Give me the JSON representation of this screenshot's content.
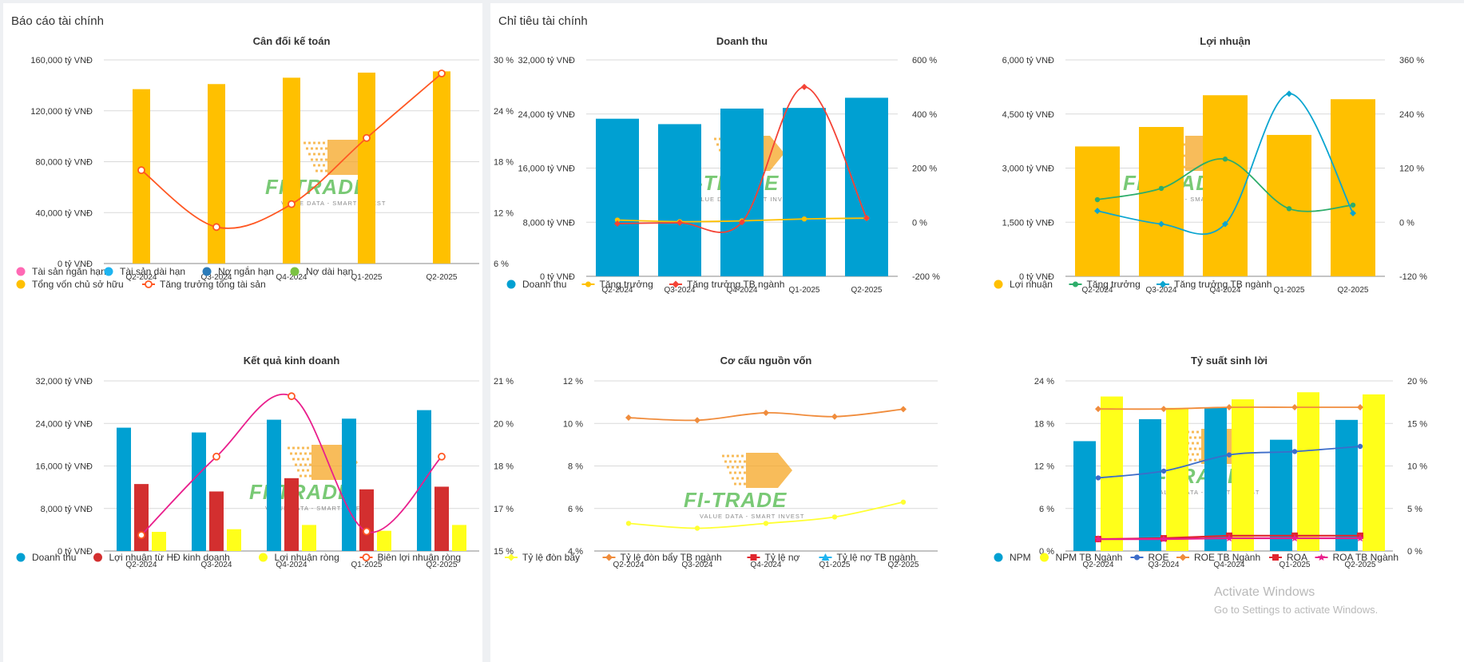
{
  "left_panel": {
    "title": "Báo cáo tài chính"
  },
  "right_panel": {
    "title": "Chỉ tiêu tài chính"
  },
  "watermark": {
    "brand": "FI-TRADE",
    "tagline": "VALUE DATA - SMART INVEST"
  },
  "system_overlay": {
    "line1": "Activate Windows",
    "line2": "Go to Settings to activate Windows."
  },
  "colors": {
    "orange_bar": "#FFC000",
    "blue_bar": "#00A0D2",
    "red_bar": "#D32F2F",
    "yellow_bar": "#FFFF1A",
    "pink": "#FF69B4",
    "sky": "#1EB4F0",
    "navy": "#2B7BB9",
    "green": "#7CC242",
    "growth_orange": "#FF5722",
    "magenta": "#E91E8C",
    "industry_red": "#F44336",
    "gold_line": "#FFC000",
    "teal_green": "#2EAD6B",
    "cyan_line": "#0BA5D0",
    "lev_orange": "#F08C3C",
    "lev_yellow": "#FFFF33",
    "roe_blue": "#3D6DC9",
    "roa_red": "#E0262E",
    "roa_magenta": "#E91E8C"
  },
  "chart_data": [
    {
      "id": "balance",
      "type": "bar",
      "title": "Cân đối kế toán",
      "categories": [
        "Q2-2024",
        "Q3-2024",
        "Q4-2024",
        "Q1-2025",
        "Q2-2025"
      ],
      "y_left": {
        "min": 0,
        "max": 160000,
        "ticks": [
          0,
          40000,
          80000,
          120000,
          160000
        ],
        "tick_labels": [
          "0 tỷ VNĐ",
          "40,000 tỷ VNĐ",
          "80,000 tỷ VNĐ",
          "120,000 tỷ VNĐ",
          "160,000 tỷ VNĐ"
        ]
      },
      "y_right": {
        "min": 6,
        "max": 30,
        "ticks": [
          6,
          12,
          18,
          24,
          30
        ],
        "tick_labels": [
          "6 %",
          "12 %",
          "18 %",
          "24 %",
          "30 %"
        ]
      },
      "bars": [
        {
          "name": "Tổng vốn chủ sở hữu",
          "color": "#FFC000",
          "values": [
            137000,
            141000,
            146000,
            150000,
            151000
          ]
        }
      ],
      "lines": [
        {
          "name": "Tăng trưởng tổng tài sản",
          "color": "#FF5722",
          "marker": "ring",
          "smooth": true,
          "values": [
            17.0,
            10.3,
            13.0,
            20.8,
            28.4
          ]
        }
      ],
      "legend": [
        {
          "name": "Tài sản ngắn hạn",
          "color": "#FF69B4",
          "symbol": "circle"
        },
        {
          "name": "Tài sản dài hạn",
          "color": "#1EB4F0",
          "symbol": "circle"
        },
        {
          "name": "Nợ ngắn hạn",
          "color": "#2B7BB9",
          "symbol": "circle"
        },
        {
          "name": "Nợ dài hạn",
          "color": "#7CC242",
          "symbol": "circle"
        },
        {
          "name": "Tổng vốn chủ sở hữu",
          "color": "#FFC000",
          "symbol": "circle"
        },
        {
          "name": "Tăng trưởng tổng tài sản",
          "color": "#FF5722",
          "symbol": "ring-line"
        }
      ]
    },
    {
      "id": "business",
      "type": "bar",
      "title": "Kết quả kinh doanh",
      "categories": [
        "Q2-2024",
        "Q3-2024",
        "Q4-2024",
        "Q1-2025",
        "Q2-2025"
      ],
      "y_left": {
        "min": 0,
        "max": 32000,
        "ticks": [
          0,
          8000,
          16000,
          24000,
          32000
        ],
        "tick_labels": [
          "0 tỷ VNĐ",
          "8,000 tỷ VNĐ",
          "16,000 tỷ VNĐ",
          "24,000 tỷ VNĐ",
          "32,000 tỷ VNĐ"
        ]
      },
      "y_right": {
        "min": 15,
        "max": 21,
        "ticks": [
          15,
          16.5,
          18,
          19.5,
          21
        ],
        "tick_labels": [
          "15 %",
          "17 %",
          "18 %",
          "20 %",
          "21 %"
        ]
      },
      "bars": [
        {
          "name": "Doanh thu",
          "color": "#00A0D2",
          "values": [
            23200,
            22300,
            24700,
            24900,
            26500
          ]
        },
        {
          "name": "Lợi nhuận từ HĐ kinh doanh",
          "color": "#D32F2F",
          "values": [
            12600,
            11200,
            13700,
            11600,
            12100
          ]
        },
        {
          "name": "Lợi nhuận ròng",
          "color": "#FFFF1A",
          "values": [
            3600,
            4100,
            4900,
            3800,
            4900
          ]
        }
      ],
      "lines": [
        {
          "name": "Biên lợi nhuận ròng",
          "color": "#E91E8C",
          "marker": "ring-red",
          "smooth": true,
          "values": [
            15.56,
            18.33,
            20.46,
            15.69,
            18.33
          ]
        }
      ],
      "legend": [
        {
          "name": "Doanh thu",
          "color": "#00A0D2",
          "symbol": "circle"
        },
        {
          "name": "Lợi nhuận từ HĐ kinh doanh",
          "color": "#D32F2F",
          "symbol": "circle"
        },
        {
          "name": "Lợi nhuận ròng",
          "color": "#FFFF1A",
          "symbol": "circle"
        },
        {
          "name": "Biên lợi nhuận ròng",
          "color": "#FF5722",
          "symbol": "ring-line"
        }
      ]
    },
    {
      "id": "revenue",
      "type": "bar",
      "title": "Doanh thu",
      "categories": [
        "Q2-2024",
        "Q3-2024",
        "Q4-2024",
        "Q1-2025",
        "Q2-2025"
      ],
      "y_left": {
        "min": 0,
        "max": 32000,
        "ticks": [
          0,
          8000,
          16000,
          24000,
          32000
        ],
        "tick_labels": [
          "0 tỷ VNĐ",
          "8,000 tỷ VNĐ",
          "16,000 tỷ VNĐ",
          "24,000 tỷ VNĐ",
          "32,000 tỷ VNĐ"
        ]
      },
      "y_right": {
        "min": -200,
        "max": 600,
        "ticks": [
          -200,
          0,
          200,
          400,
          600
        ],
        "tick_labels": [
          "-200 %",
          "0 %",
          "200 %",
          "400 %",
          "600 %"
        ]
      },
      "bars": [
        {
          "name": "Doanh thu",
          "color": "#00A0D2",
          "values": [
            23300,
            22500,
            24800,
            24900,
            26400
          ]
        }
      ],
      "lines": [
        {
          "name": "Tăng trưởng",
          "color": "#FFC000",
          "marker": "dot",
          "smooth": true,
          "values": [
            8,
            2,
            5,
            12,
            15
          ]
        },
        {
          "name": "Tăng trưởng TB ngành",
          "color": "#F44336",
          "marker": "diamond",
          "smooth": true,
          "values": [
            -5,
            -2,
            0,
            500,
            15
          ]
        }
      ],
      "legend": [
        {
          "name": "Doanh thu",
          "color": "#00A0D2",
          "symbol": "circle"
        },
        {
          "name": "Tăng trưởng",
          "color": "#FFC000",
          "symbol": "dot-line"
        },
        {
          "name": "Tăng trưởng TB ngành",
          "color": "#F44336",
          "symbol": "diamond-line"
        }
      ]
    },
    {
      "id": "profit",
      "type": "bar",
      "title": "Lợi nhuận",
      "categories": [
        "Q2-2024",
        "Q3-2024",
        "Q4-2024",
        "Q1-2025",
        "Q2-2025"
      ],
      "y_left": {
        "min": 0,
        "max": 6000,
        "ticks": [
          0,
          1500,
          3000,
          4500,
          6000
        ],
        "tick_labels": [
          "0 tỷ VNĐ",
          "1,500 tỷ VNĐ",
          "3,000 tỷ VNĐ",
          "4,500 tỷ VNĐ",
          "6,000 tỷ VNĐ"
        ]
      },
      "y_right": {
        "min": -120,
        "max": 360,
        "ticks": [
          -120,
          0,
          120,
          240,
          360
        ],
        "tick_labels": [
          "-120 %",
          "0 %",
          "120 %",
          "240 %",
          "360 %"
        ]
      },
      "bars": [
        {
          "name": "Lợi nhuận",
          "color": "#FFC000",
          "values": [
            3600,
            4140,
            5020,
            3920,
            4910
          ]
        }
      ],
      "lines": [
        {
          "name": "Tăng trưởng",
          "color": "#2EAD6B",
          "marker": "dot",
          "smooth": true,
          "values": [
            50,
            75,
            140,
            30,
            38
          ]
        },
        {
          "name": "Tăng trưởng TB ngành",
          "color": "#0BA5D0",
          "marker": "diamond",
          "smooth": true,
          "values": [
            25,
            -4,
            -4,
            285,
            20
          ]
        }
      ],
      "legend": [
        {
          "name": "Lợi nhuận",
          "color": "#FFC000",
          "symbol": "circle"
        },
        {
          "name": "Tăng trưởng",
          "color": "#2EAD6B",
          "symbol": "dot-line"
        },
        {
          "name": "Tăng trưởng TB ngành",
          "color": "#0BA5D0",
          "symbol": "diamond-line"
        }
      ]
    },
    {
      "id": "capital",
      "type": "line",
      "title": "Cơ cấu nguồn vốn",
      "categories": [
        "Q2-2024",
        "Q3-2024",
        "Q4-2024",
        "Q1-2025",
        "Q2-2025"
      ],
      "y_left": {
        "min": 4,
        "max": 12,
        "ticks": [
          4,
          6,
          8,
          10,
          12
        ],
        "tick_labels": [
          "4 %",
          "6 %",
          "8 %",
          "10 %",
          "12 %"
        ]
      },
      "bars": [],
      "lines": [
        {
          "name": "Tỷ lệ đòn bẩy",
          "color": "#FFFF33",
          "marker": "dot",
          "smooth": true,
          "axis": "left",
          "values": [
            5.3,
            5.07,
            5.3,
            5.6,
            6.3
          ]
        },
        {
          "name": "Tỷ lệ đòn bẩy TB ngành",
          "color": "#F08C3C",
          "marker": "diamond",
          "smooth": true,
          "axis": "left",
          "values": [
            10.27,
            10.15,
            10.5,
            10.32,
            10.67
          ]
        }
      ],
      "legend": [
        {
          "name": "Tỷ lệ đòn bẩy",
          "color": "#FFFF33",
          "symbol": "diamond-line"
        },
        {
          "name": "Tỷ lệ đòn bẩy TB ngành",
          "color": "#F08C3C",
          "symbol": "diamond-line"
        },
        {
          "name": "Tỷ lệ nợ",
          "color": "#E0262E",
          "symbol": "square-line"
        },
        {
          "name": "Tỷ lệ nợ TB ngành",
          "color": "#1EB4F0",
          "symbol": "triangle-line"
        }
      ]
    },
    {
      "id": "profitability",
      "type": "bar",
      "title": "Tỷ suất sinh lời",
      "categories": [
        "Q2-2024",
        "Q3-2024",
        "Q4-2024",
        "Q1-2025",
        "Q2-2025"
      ],
      "y_left": {
        "min": 0,
        "max": 24,
        "ticks": [
          0,
          6,
          12,
          18,
          24
        ],
        "tick_labels": [
          "0 %",
          "6 %",
          "12 %",
          "18 %",
          "24 %"
        ]
      },
      "y_right": {
        "min": 0,
        "max": 20,
        "ticks": [
          0,
          5,
          10,
          15,
          20
        ],
        "tick_labels": [
          "0 %",
          "5 %",
          "10 %",
          "15 %",
          "20 %"
        ]
      },
      "bars": [
        {
          "name": "NPM",
          "color": "#00A0D2",
          "values": [
            15.5,
            18.6,
            20.2,
            15.7,
            18.5
          ]
        },
        {
          "name": "NPM TB Ngành",
          "color": "#FFFF1A",
          "values": [
            21.8,
            20.2,
            21.4,
            22.4,
            22.1
          ]
        }
      ],
      "lines": [
        {
          "name": "ROE",
          "color": "#3D6DC9",
          "marker": "dot",
          "smooth": true,
          "axis": "right",
          "values": [
            8.6,
            9.4,
            11.3,
            11.7,
            12.3
          ]
        },
        {
          "name": "ROE TB Ngành",
          "color": "#F08C3C",
          "marker": "diamond",
          "smooth": true,
          "axis": "right",
          "values": [
            16.7,
            16.7,
            16.9,
            16.9,
            16.9
          ]
        },
        {
          "name": "ROA",
          "color": "#E0262E",
          "marker": "square",
          "smooth": false,
          "axis": "right",
          "values": [
            1.4,
            1.5,
            1.8,
            1.8,
            1.8
          ]
        },
        {
          "name": "ROA TB Ngành",
          "color": "#E91E8C",
          "marker": "star",
          "smooth": false,
          "axis": "right",
          "values": [
            1.4,
            1.4,
            1.5,
            1.5,
            1.5
          ]
        }
      ],
      "legend": [
        {
          "name": "NPM",
          "color": "#00A0D2",
          "symbol": "circle"
        },
        {
          "name": "NPM TB Ngành",
          "color": "#FFFF1A",
          "symbol": "circle"
        },
        {
          "name": "ROE",
          "color": "#3D6DC9",
          "symbol": "dot-line"
        },
        {
          "name": "ROE TB Ngành",
          "color": "#F08C3C",
          "symbol": "diamond-line"
        },
        {
          "name": "ROA",
          "color": "#E0262E",
          "symbol": "square-line"
        },
        {
          "name": "ROA TB Ngành",
          "color": "#E91E8C",
          "symbol": "star-line"
        }
      ]
    }
  ]
}
